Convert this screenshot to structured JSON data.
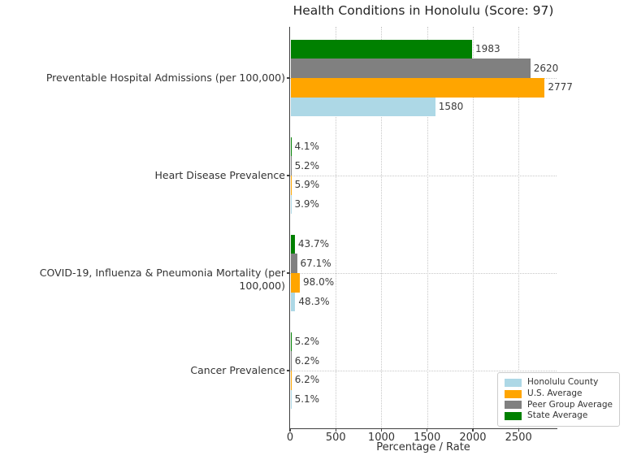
{
  "chart_data": {
    "type": "bar",
    "orientation": "horizontal",
    "title": "Health Conditions in Honolulu (Score: 97)",
    "xlabel": "Percentage / Rate",
    "xlim": [
      0,
      2916
    ],
    "xticks": [
      0,
      500,
      1000,
      1500,
      2000,
      2500
    ],
    "grid": "dotted, both axes",
    "legend_position": "lower right",
    "categories": [
      "Preventable Hospital Admissions (per 100,000)",
      "Heart Disease Prevalence",
      "COVID-19, Influenza & Pneumonia Mortality (per 100,000)",
      "Cancer Prevalence"
    ],
    "series": [
      {
        "name": "State Average",
        "color": "#008000",
        "values": [
          1983,
          4.1,
          43.7,
          5.2
        ],
        "labels": [
          "1983",
          "4.1%",
          "43.7%",
          "5.2%"
        ]
      },
      {
        "name": "Peer Group Average",
        "color": "#808080",
        "values": [
          2620,
          5.2,
          67.1,
          6.2
        ],
        "labels": [
          "2620",
          "5.2%",
          "67.1%",
          "6.2%"
        ]
      },
      {
        "name": "U.S. Average",
        "color": "#FFA500",
        "values": [
          2777,
          5.9,
          98.0,
          6.2
        ],
        "labels": [
          "2777",
          "5.9%",
          "98.0%",
          "6.2%"
        ]
      },
      {
        "name": "Honolulu County",
        "color": "#ADD8E6",
        "values": [
          1580,
          3.9,
          48.3,
          5.1
        ],
        "labels": [
          "1580",
          "3.9%",
          "48.3%",
          "5.1%"
        ]
      }
    ],
    "legend": {
      "entries": [
        {
          "label": "Honolulu County",
          "color": "#ADD8E6"
        },
        {
          "label": "U.S. Average",
          "color": "#FFA500"
        },
        {
          "label": "Peer Group Average",
          "color": "#808080"
        },
        {
          "label": "State Average",
          "color": "#008000"
        }
      ]
    }
  }
}
